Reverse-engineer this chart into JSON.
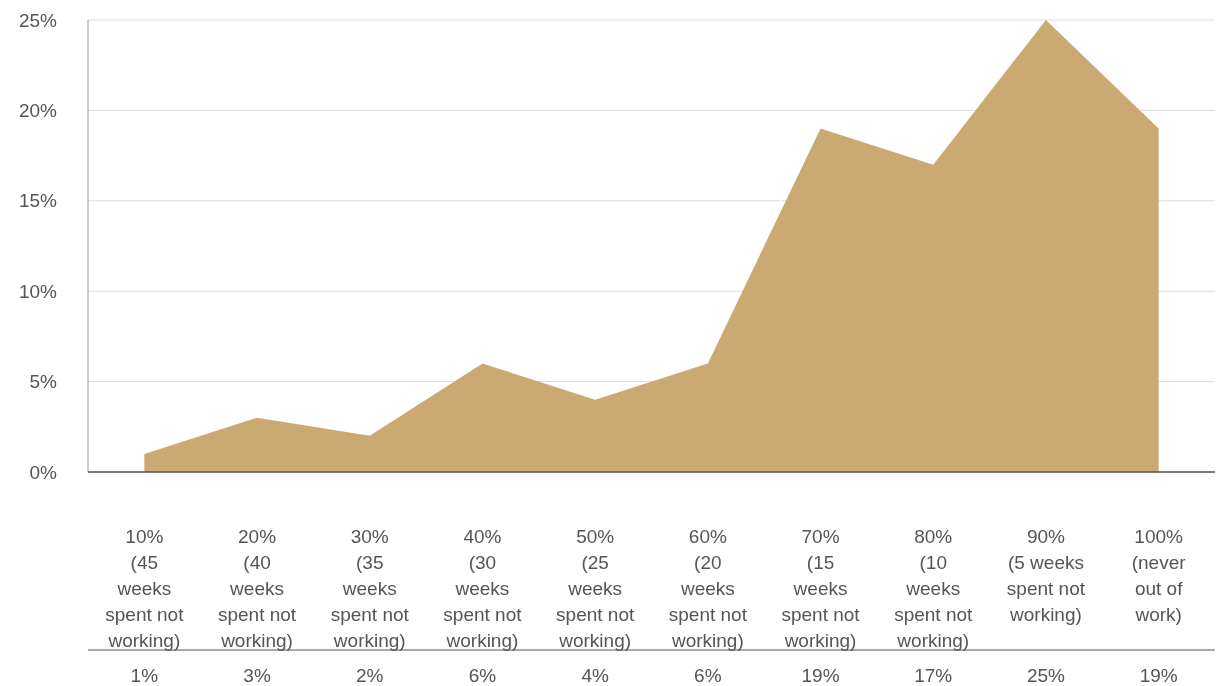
{
  "chart_data": {
    "type": "area",
    "categories": [
      "10% (45 weeks spent not working)",
      "20% (40 weeks spent not working)",
      "30% (35 weeks spent not working)",
      "40% (30 weeks spent not working)",
      "50% (25 weeks spent not working)",
      "60% (20 weeks spent not working)",
      "70% (15 weeks spent not working)",
      "80% (10 weeks spent not working)",
      "90% (5 weeks spent not working)",
      "100% (never out of work)"
    ],
    "series": [
      {
        "color": "#caa973",
        "values": [
          1,
          3,
          2,
          6,
          4,
          6,
          19,
          17,
          25,
          19
        ],
        "value_labels": [
          "1%",
          "3%",
          "2%",
          "6%",
          "4%",
          "6%",
          "19%",
          "17%",
          "25%",
          "19%"
        ]
      }
    ],
    "ylim": [
      0,
      25
    ],
    "yticks": [
      {
        "value": 0,
        "label": "0%"
      },
      {
        "value": 5,
        "label": "5%"
      },
      {
        "value": 10,
        "label": "10%"
      },
      {
        "value": 15,
        "label": "15%"
      },
      {
        "value": 20,
        "label": "20%"
      },
      {
        "value": 25,
        "label": "25%"
      }
    ],
    "grid": "y"
  }
}
